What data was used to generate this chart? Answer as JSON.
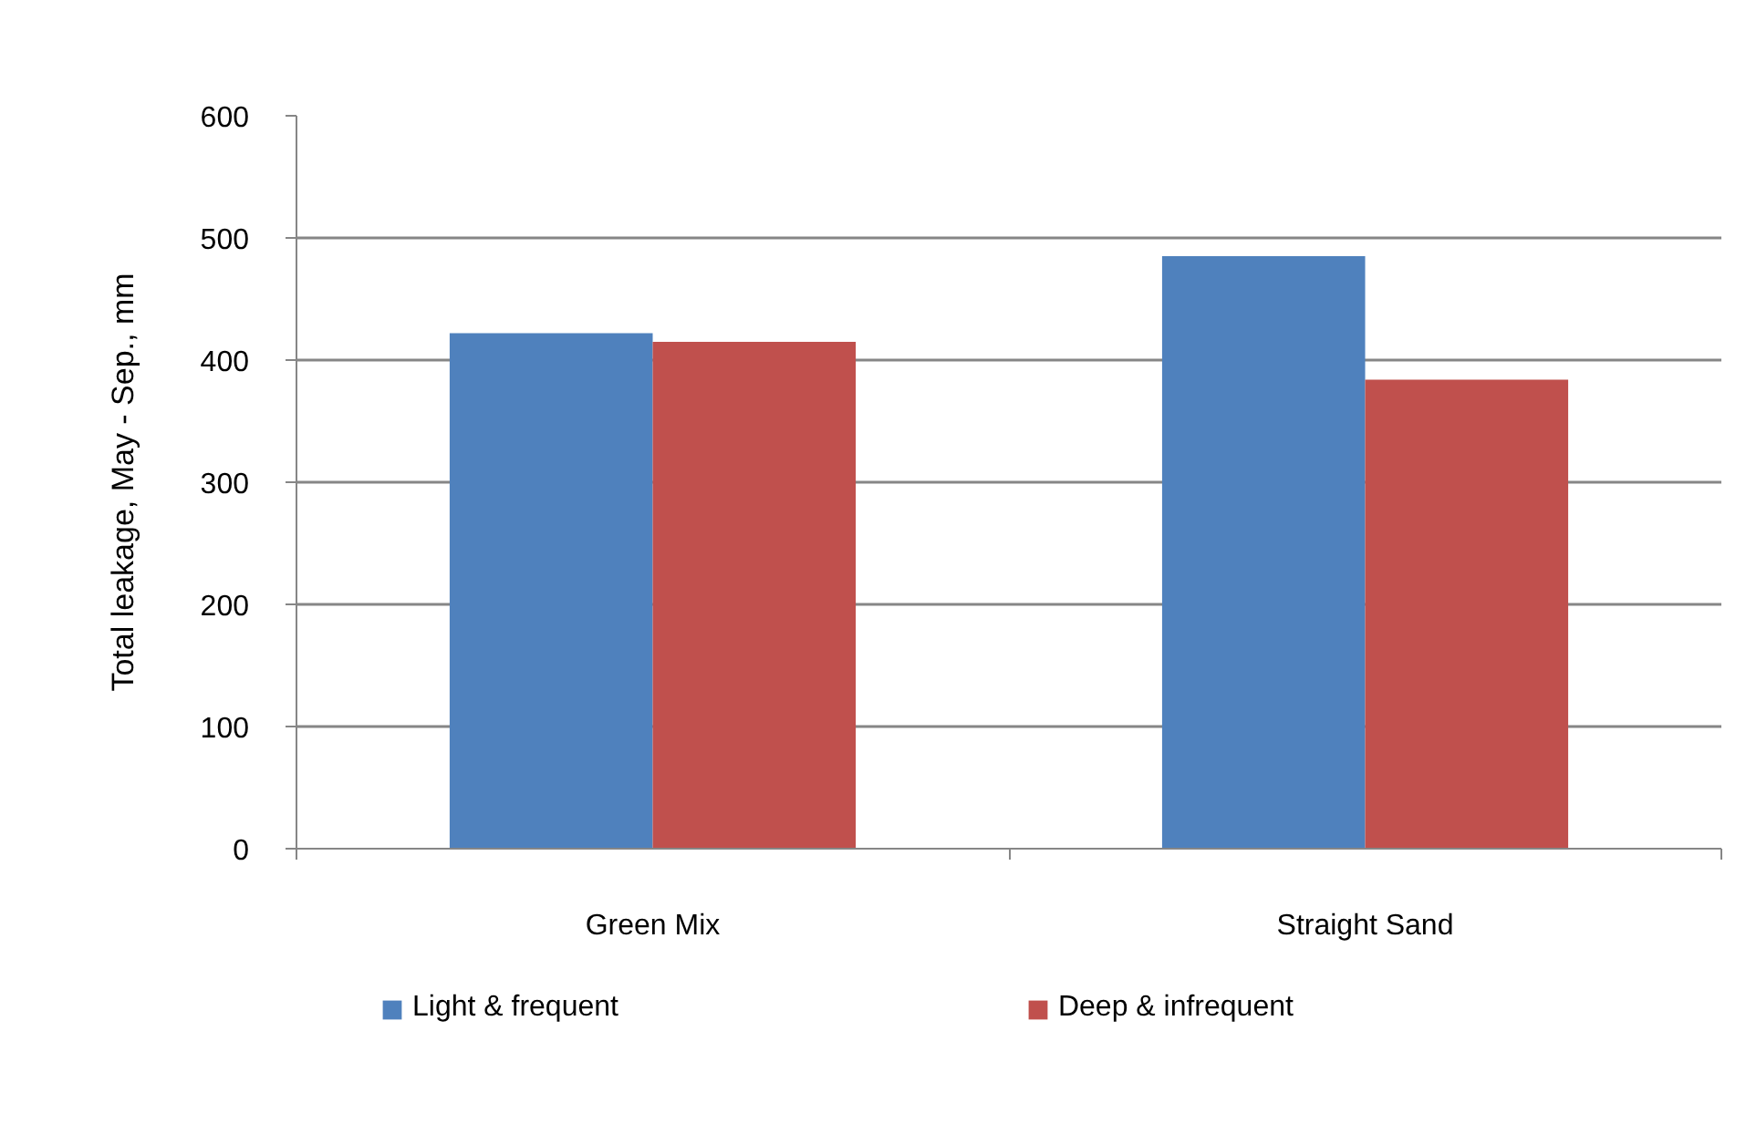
{
  "chart_data": {
    "type": "bar",
    "ylabel": "Total leakage, May - Sep., mm",
    "categories": [
      "Green Mix",
      "Straight Sand"
    ],
    "series": [
      {
        "name": "Light & frequent",
        "color": "#4f81bd",
        "values": [
          422,
          485
        ]
      },
      {
        "name": "Deep & infrequent",
        "color": "#c0504d",
        "values": [
          415,
          384
        ]
      }
    ],
    "ylim": [
      0,
      600
    ],
    "yticks": [
      0,
      100,
      200,
      300,
      400,
      500,
      600
    ],
    "grid": "y",
    "legend": "bottom"
  }
}
